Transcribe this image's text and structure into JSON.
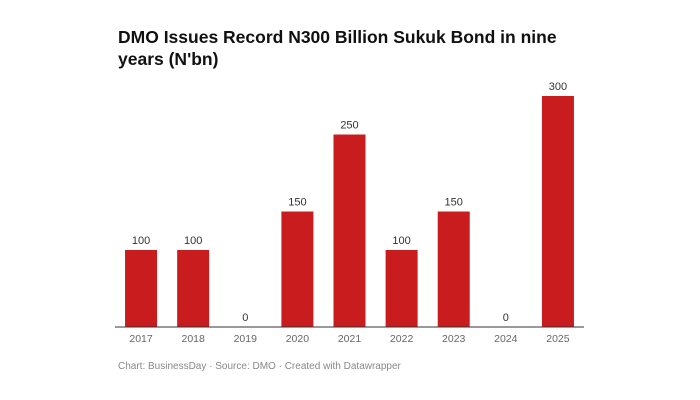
{
  "chart_data": {
    "type": "bar",
    "title": "DMO Issues Record N300 Billion Sukuk Bond in nine years (N'bn)",
    "categories": [
      "2017",
      "2018",
      "2019",
      "2020",
      "2021",
      "2022",
      "2023",
      "2024",
      "2025"
    ],
    "values": [
      100,
      100,
      0,
      150,
      250,
      100,
      150,
      0,
      300
    ],
    "color": "#c91c1e",
    "footer": "Chart: BusinessDay · Source: DMO · Created with Datawrapper"
  }
}
